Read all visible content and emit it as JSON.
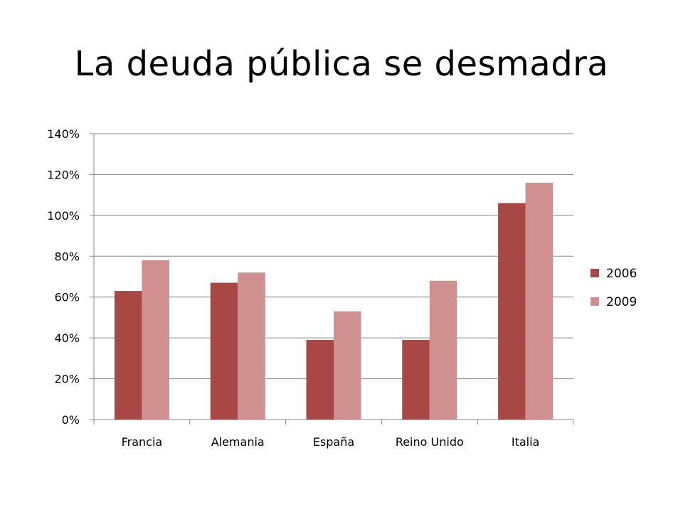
{
  "title": "La deuda pública se desmadra",
  "chart_data": {
    "type": "bar",
    "title": "La deuda pública se desmadra",
    "categories": [
      "Francia",
      "Alemania",
      "España",
      "Reino Unido",
      "Italia"
    ],
    "series": [
      {
        "name": "2006",
        "values": [
          63,
          67,
          39,
          39,
          106
        ],
        "color": "#a94745"
      },
      {
        "name": "2009",
        "values": [
          78,
          72,
          53,
          68,
          116
        ],
        "color": "#d09090"
      }
    ],
    "ylim": [
      0,
      140
    ],
    "ytick_step": 20,
    "ytick_format": "percent",
    "grid": true,
    "legend_position": "right",
    "xlabel": "",
    "ylabel": ""
  }
}
